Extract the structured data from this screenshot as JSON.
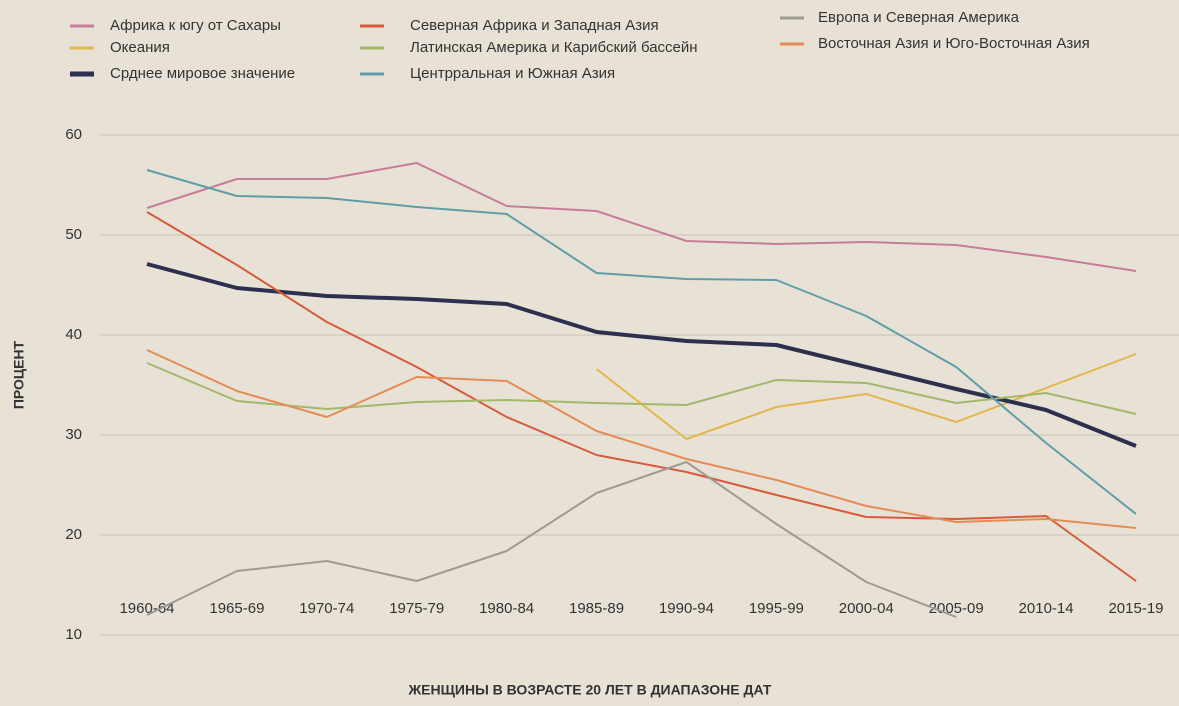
{
  "chart_data": {
    "type": "line",
    "xlabel": "ЖЕНЩИНЫ В ВОЗРАСТЕ 20 ЛЕТ В ДИАПАЗОНЕ ДАТ",
    "ylabel": "ПРОЦЕНТ",
    "categories": [
      "1960-64",
      "1965-69",
      "1970-74",
      "1975-79",
      "1980-84",
      "1985-89",
      "1990-94",
      "1995-99",
      "2000-04",
      "2005-09",
      "2010-14",
      "2015-19"
    ],
    "ylim": [
      10,
      60
    ],
    "yticks": [
      10,
      20,
      30,
      40,
      50,
      60
    ],
    "grid": true,
    "legend": "top",
    "series": [
      {
        "name": "Африка к югу от Сахары",
        "color": "#c97b9a",
        "width": 2,
        "values": [
          52.7,
          55.6,
          55.6,
          57.2,
          52.9,
          52.4,
          49.4,
          49.1,
          49.3,
          49.0,
          47.8,
          46.4
        ]
      },
      {
        "name": "Океания",
        "color": "#e3b64e",
        "width": 2,
        "values": [
          null,
          null,
          null,
          null,
          null,
          36.6,
          29.6,
          32.8,
          34.1,
          31.3,
          34.7,
          38.1
        ]
      },
      {
        "name": "Срднее мировое значение",
        "color": "#2d2f4e",
        "width": 4,
        "values": [
          47.1,
          44.7,
          43.9,
          43.6,
          43.1,
          40.3,
          39.4,
          39.0,
          36.8,
          34.6,
          32.5,
          28.9
        ]
      },
      {
        "name": "Северная Африка и Западная Азия",
        "color": "#d85a3a",
        "width": 2,
        "values": [
          52.3,
          47.0,
          41.3,
          36.8,
          31.8,
          28.0,
          26.3,
          24.0,
          21.8,
          21.6,
          21.9,
          15.4
        ]
      },
      {
        "name": "Латинская Америка и Карибский бассейн",
        "color": "#a4b86a",
        "width": 2,
        "values": [
          37.2,
          33.4,
          32.6,
          33.3,
          33.5,
          33.2,
          33.0,
          35.5,
          35.2,
          33.2,
          34.2,
          32.1
        ]
      },
      {
        "name": "Центрральная и Южная Азия",
        "color": "#5f9ea8",
        "width": 2,
        "values": [
          56.5,
          53.9,
          53.7,
          52.8,
          52.1,
          46.2,
          45.6,
          45.5,
          41.9,
          36.8,
          29.2,
          22.1
        ]
      },
      {
        "name": "Европа и Северная Америка",
        "color": "#9e9a94",
        "width": 2,
        "values": [
          12.0,
          16.4,
          17.4,
          15.4,
          18.4,
          24.2,
          27.3,
          21.1,
          15.3,
          11.8,
          null,
          null
        ]
      },
      {
        "name": "Восточная Азия и Юго-Восточная Азия",
        "color": "#e58c55",
        "width": 2,
        "values": [
          38.5,
          34.4,
          31.8,
          35.8,
          35.4,
          30.4,
          27.6,
          25.5,
          22.9,
          21.3,
          21.6,
          20.7
        ]
      }
    ]
  }
}
